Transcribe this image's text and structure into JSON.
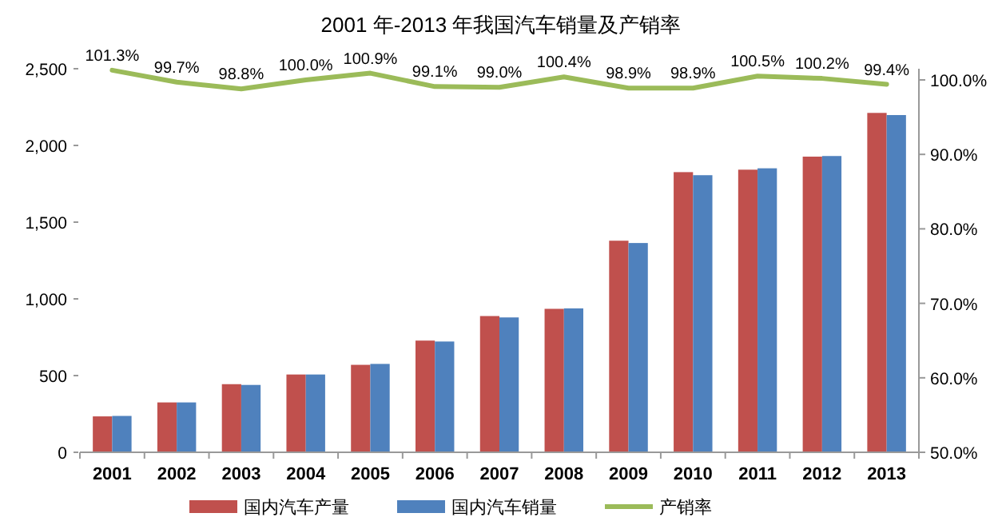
{
  "chart_data": {
    "type": "bar",
    "title": "2001 年-2013 年我国汽车销量及产销率",
    "categories": [
      "2001",
      "2002",
      "2003",
      "2004",
      "2005",
      "2006",
      "2007",
      "2008",
      "2009",
      "2010",
      "2011",
      "2012",
      "2013"
    ],
    "series": [
      {
        "name": "国内汽车产量",
        "color": "#c0504d",
        "values": [
          234,
          325,
          444,
          507,
          570,
          728,
          888,
          935,
          1379,
          1826,
          1842,
          1927,
          2212
        ]
      },
      {
        "name": "国内汽车销量",
        "color": "#4f81bd",
        "values": [
          237,
          325,
          439,
          507,
          576,
          722,
          879,
          938,
          1364,
          1806,
          1851,
          1931,
          2198
        ]
      },
      {
        "name": "产销率",
        "type": "line",
        "axis": "y2",
        "color": "#9bbb59",
        "values": [
          101.3,
          99.7,
          98.8,
          100.0,
          100.9,
          99.1,
          99.0,
          100.4,
          98.9,
          98.9,
          100.5,
          100.2,
          99.4
        ],
        "value_labels": [
          "101.3%",
          "99.7%",
          "98.8%",
          "100.0%",
          "100.9%",
          "99.1%",
          "99.0%",
          "100.4%",
          "98.9%",
          "98.9%",
          "100.5%",
          "100.2%",
          "99.4%"
        ]
      }
    ],
    "ylim": [
      0,
      2500
    ],
    "yticks": [
      {
        "value": 0,
        "label": "0"
      },
      {
        "value": 500,
        "label": "500"
      },
      {
        "value": 1000,
        "label": "1,000"
      },
      {
        "value": 1500,
        "label": "1,500"
      },
      {
        "value": 2000,
        "label": "2,000"
      },
      {
        "value": 2500,
        "label": "2,500"
      }
    ],
    "y2lim": [
      50,
      101.5
    ],
    "y2ticks": [
      {
        "value": 50,
        "label": "50.0%"
      },
      {
        "value": 60,
        "label": "60.0%"
      },
      {
        "value": 70,
        "label": "70.0%"
      },
      {
        "value": 80,
        "label": "80.0%"
      },
      {
        "value": 90,
        "label": "90.0%"
      },
      {
        "value": 100,
        "label": "100.0%"
      }
    ],
    "grid": false,
    "legend": "bottom",
    "line_style": "solid",
    "marker": "none"
  }
}
